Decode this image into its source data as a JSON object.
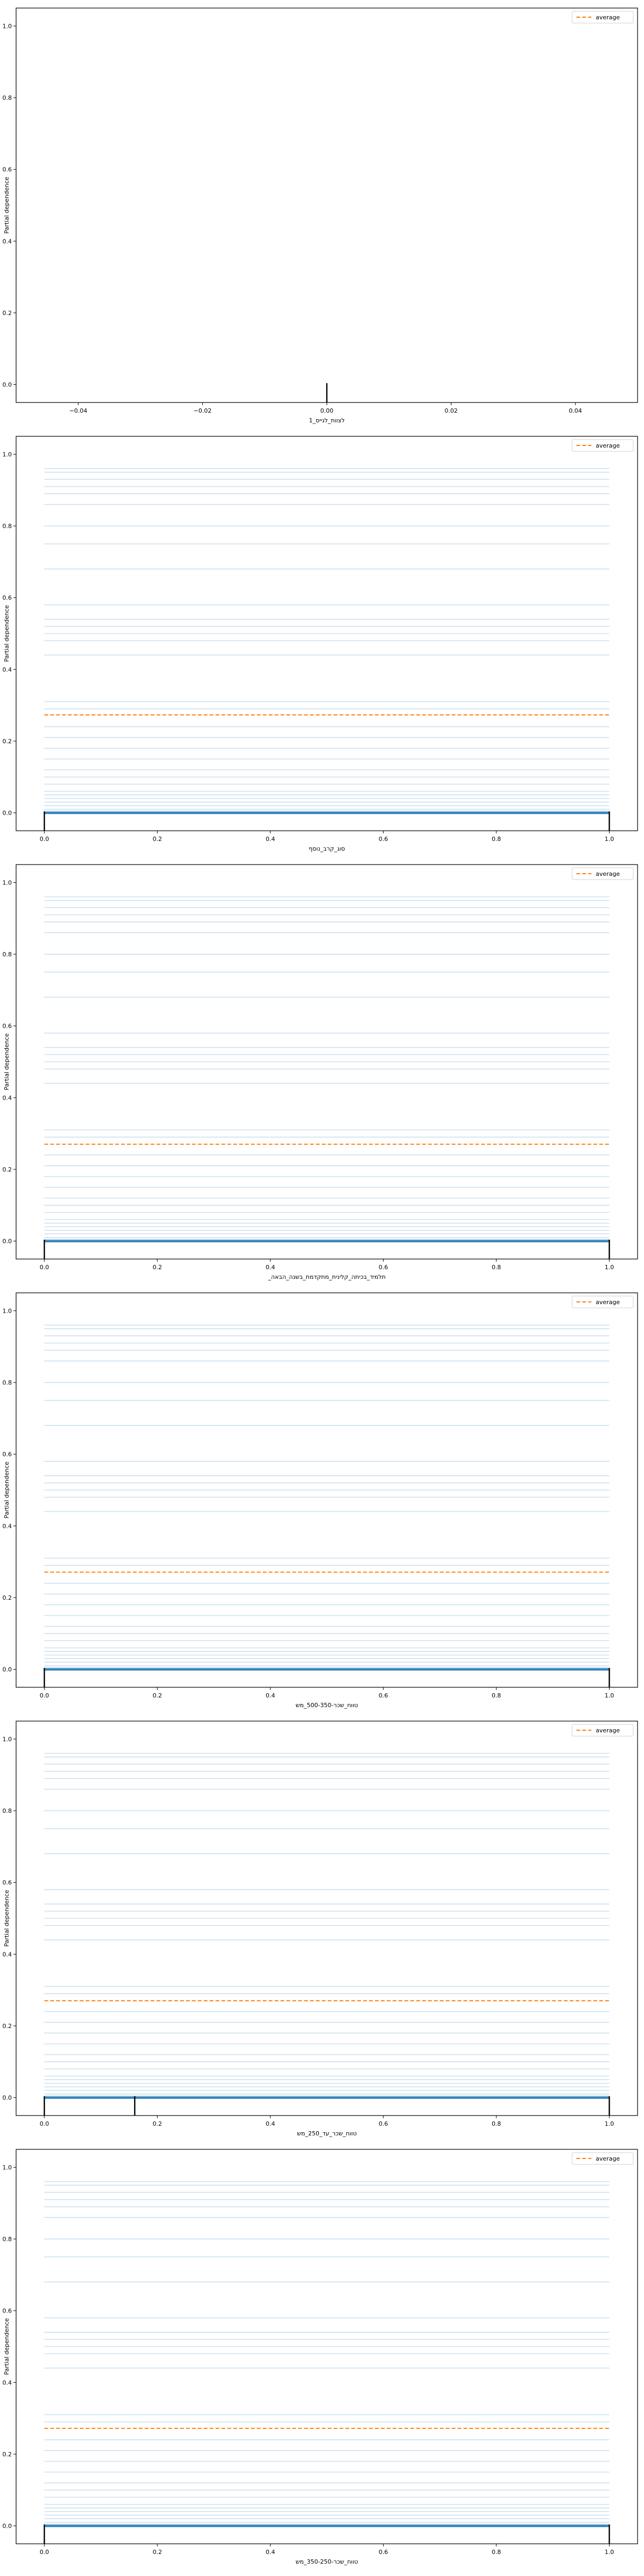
{
  "figure": {
    "ylabel": "Partial dependence",
    "legend_label": "average"
  },
  "chart_data": [
    {
      "type": "line",
      "xlabel": "לצוות_לגייס_1",
      "xlim": [
        -0.05,
        0.05
      ],
      "ylim": [
        -0.05,
        1.05
      ],
      "x_ticks": [
        "−0.04",
        "−0.02",
        "0.00",
        "0.02",
        "0.04"
      ],
      "x_tick_values": [
        -0.04,
        -0.02,
        0.0,
        0.02,
        0.04
      ],
      "y_ticks": [
        "0.0",
        "0.2",
        "0.4",
        "0.6",
        "0.8",
        "1.0"
      ],
      "y_tick_values": [
        0,
        0.2,
        0.4,
        0.6,
        0.8,
        1.0
      ],
      "x_domain": [
        0,
        0
      ],
      "ice_levels": [],
      "average": null,
      "rug": [
        0.0
      ],
      "legend": "top-right",
      "grid": false
    },
    {
      "type": "line",
      "xlabel": "סוג_קרב_נוסף",
      "xlim": [
        -0.05,
        1.05
      ],
      "ylim": [
        -0.05,
        1.05
      ],
      "x_ticks": [
        "0.0",
        "0.2",
        "0.4",
        "0.6",
        "0.8",
        "1.0"
      ],
      "x_tick_values": [
        0,
        0.2,
        0.4,
        0.6,
        0.8,
        1.0
      ],
      "y_ticks": [
        "0.0",
        "0.2",
        "0.4",
        "0.6",
        "0.8",
        "1.0"
      ],
      "y_tick_values": [
        0,
        0.2,
        0.4,
        0.6,
        0.8,
        1.0
      ],
      "x_domain": [
        0,
        1
      ],
      "ice_levels": [
        0.0,
        0.005,
        0.01,
        0.02,
        0.03,
        0.04,
        0.05,
        0.06,
        0.08,
        0.1,
        0.12,
        0.15,
        0.18,
        0.21,
        0.24,
        0.29,
        0.31,
        0.44,
        0.48,
        0.5,
        0.52,
        0.54,
        0.58,
        0.68,
        0.75,
        0.8,
        0.86,
        0.89,
        0.91,
        0.93,
        0.95,
        0.96
      ],
      "average": 0.273,
      "rug": [
        0.0,
        1.0
      ],
      "legend": "top-right",
      "grid": false
    },
    {
      "type": "line",
      "xlabel": "_תלמיד_בכיתה_קלינית_מתקדמת_בשנה_הבאה",
      "xlim": [
        -0.05,
        1.05
      ],
      "ylim": [
        -0.05,
        1.05
      ],
      "x_ticks": [
        "0.0",
        "0.2",
        "0.4",
        "0.6",
        "0.8",
        "1.0"
      ],
      "x_tick_values": [
        0,
        0.2,
        0.4,
        0.6,
        0.8,
        1.0
      ],
      "y_ticks": [
        "0.0",
        "0.2",
        "0.4",
        "0.6",
        "0.8",
        "1.0"
      ],
      "y_tick_values": [
        0,
        0.2,
        0.4,
        0.6,
        0.8,
        1.0
      ],
      "x_domain": [
        0,
        1
      ],
      "ice_levels": [
        0.0,
        0.005,
        0.01,
        0.02,
        0.03,
        0.04,
        0.05,
        0.06,
        0.08,
        0.1,
        0.12,
        0.15,
        0.18,
        0.21,
        0.24,
        0.29,
        0.31,
        0.44,
        0.48,
        0.5,
        0.52,
        0.54,
        0.58,
        0.68,
        0.75,
        0.8,
        0.86,
        0.89,
        0.91,
        0.93,
        0.95,
        0.96
      ],
      "average": 0.27,
      "rug": [
        0.0,
        1.0
      ],
      "legend": "top-right",
      "grid": false
    },
    {
      "type": "line",
      "xlabel": "טווח_שכר-500-350_מש",
      "xlim": [
        -0.05,
        1.05
      ],
      "ylim": [
        -0.05,
        1.05
      ],
      "x_ticks": [
        "0.0",
        "0.2",
        "0.4",
        "0.6",
        "0.8",
        "1.0"
      ],
      "x_tick_values": [
        0,
        0.2,
        0.4,
        0.6,
        0.8,
        1.0
      ],
      "y_ticks": [
        "0.0",
        "0.2",
        "0.4",
        "0.6",
        "0.8",
        "1.0"
      ],
      "y_tick_values": [
        0,
        0.2,
        0.4,
        0.6,
        0.8,
        1.0
      ],
      "x_domain": [
        0,
        1
      ],
      "ice_levels": [
        0.0,
        0.005,
        0.01,
        0.02,
        0.03,
        0.04,
        0.05,
        0.06,
        0.08,
        0.1,
        0.12,
        0.15,
        0.18,
        0.21,
        0.24,
        0.29,
        0.31,
        0.44,
        0.48,
        0.5,
        0.52,
        0.54,
        0.58,
        0.68,
        0.75,
        0.8,
        0.86,
        0.89,
        0.91,
        0.93,
        0.95,
        0.96
      ],
      "average": 0.271,
      "rug": [
        0.0,
        1.0
      ],
      "legend": "top-right",
      "grid": false
    },
    {
      "type": "line",
      "xlabel": "טווח_שכר_עד_250_מש",
      "xlim": [
        -0.05,
        1.05
      ],
      "ylim": [
        -0.05,
        1.05
      ],
      "x_ticks": [
        "0.0",
        "0.2",
        "0.4",
        "0.6",
        "0.8",
        "1.0"
      ],
      "x_tick_values": [
        0,
        0.2,
        0.4,
        0.6,
        0.8,
        1.0
      ],
      "y_ticks": [
        "0.0",
        "0.2",
        "0.4",
        "0.6",
        "0.8",
        "1.0"
      ],
      "y_tick_values": [
        0,
        0.2,
        0.4,
        0.6,
        0.8,
        1.0
      ],
      "x_domain": [
        0,
        1
      ],
      "ice_levels": [
        0.0,
        0.005,
        0.01,
        0.02,
        0.03,
        0.04,
        0.05,
        0.06,
        0.08,
        0.1,
        0.12,
        0.15,
        0.18,
        0.21,
        0.24,
        0.29,
        0.31,
        0.44,
        0.48,
        0.5,
        0.52,
        0.54,
        0.58,
        0.68,
        0.75,
        0.8,
        0.86,
        0.89,
        0.91,
        0.93,
        0.95,
        0.96
      ],
      "average": 0.27,
      "rug": [
        0.0,
        0.16,
        1.0
      ],
      "legend": "top-right",
      "grid": false
    },
    {
      "type": "line",
      "xlabel": "טווח_שכר-350-250_מש",
      "xlim": [
        -0.05,
        1.05
      ],
      "ylim": [
        -0.05,
        1.05
      ],
      "x_ticks": [
        "0.0",
        "0.2",
        "0.4",
        "0.6",
        "0.8",
        "1.0"
      ],
      "x_tick_values": [
        0,
        0.2,
        0.4,
        0.6,
        0.8,
        1.0
      ],
      "y_ticks": [
        "0.0",
        "0.2",
        "0.4",
        "0.6",
        "0.8",
        "1.0"
      ],
      "y_tick_values": [
        0,
        0.2,
        0.4,
        0.6,
        0.8,
        1.0
      ],
      "x_domain": [
        0,
        1
      ],
      "ice_levels": [
        0.0,
        0.005,
        0.01,
        0.02,
        0.03,
        0.04,
        0.05,
        0.06,
        0.08,
        0.1,
        0.12,
        0.15,
        0.18,
        0.21,
        0.24,
        0.29,
        0.31,
        0.44,
        0.48,
        0.5,
        0.52,
        0.54,
        0.58,
        0.68,
        0.75,
        0.8,
        0.86,
        0.89,
        0.91,
        0.93,
        0.95,
        0.96
      ],
      "average": 0.272,
      "rug": [
        0.0,
        1.0
      ],
      "legend": "top-right",
      "grid": false
    }
  ],
  "colors": {
    "ice": "#1f77b4",
    "average": "#ff7f0e",
    "rug": "#000000",
    "axes": "#000000",
    "text": "#000000"
  }
}
